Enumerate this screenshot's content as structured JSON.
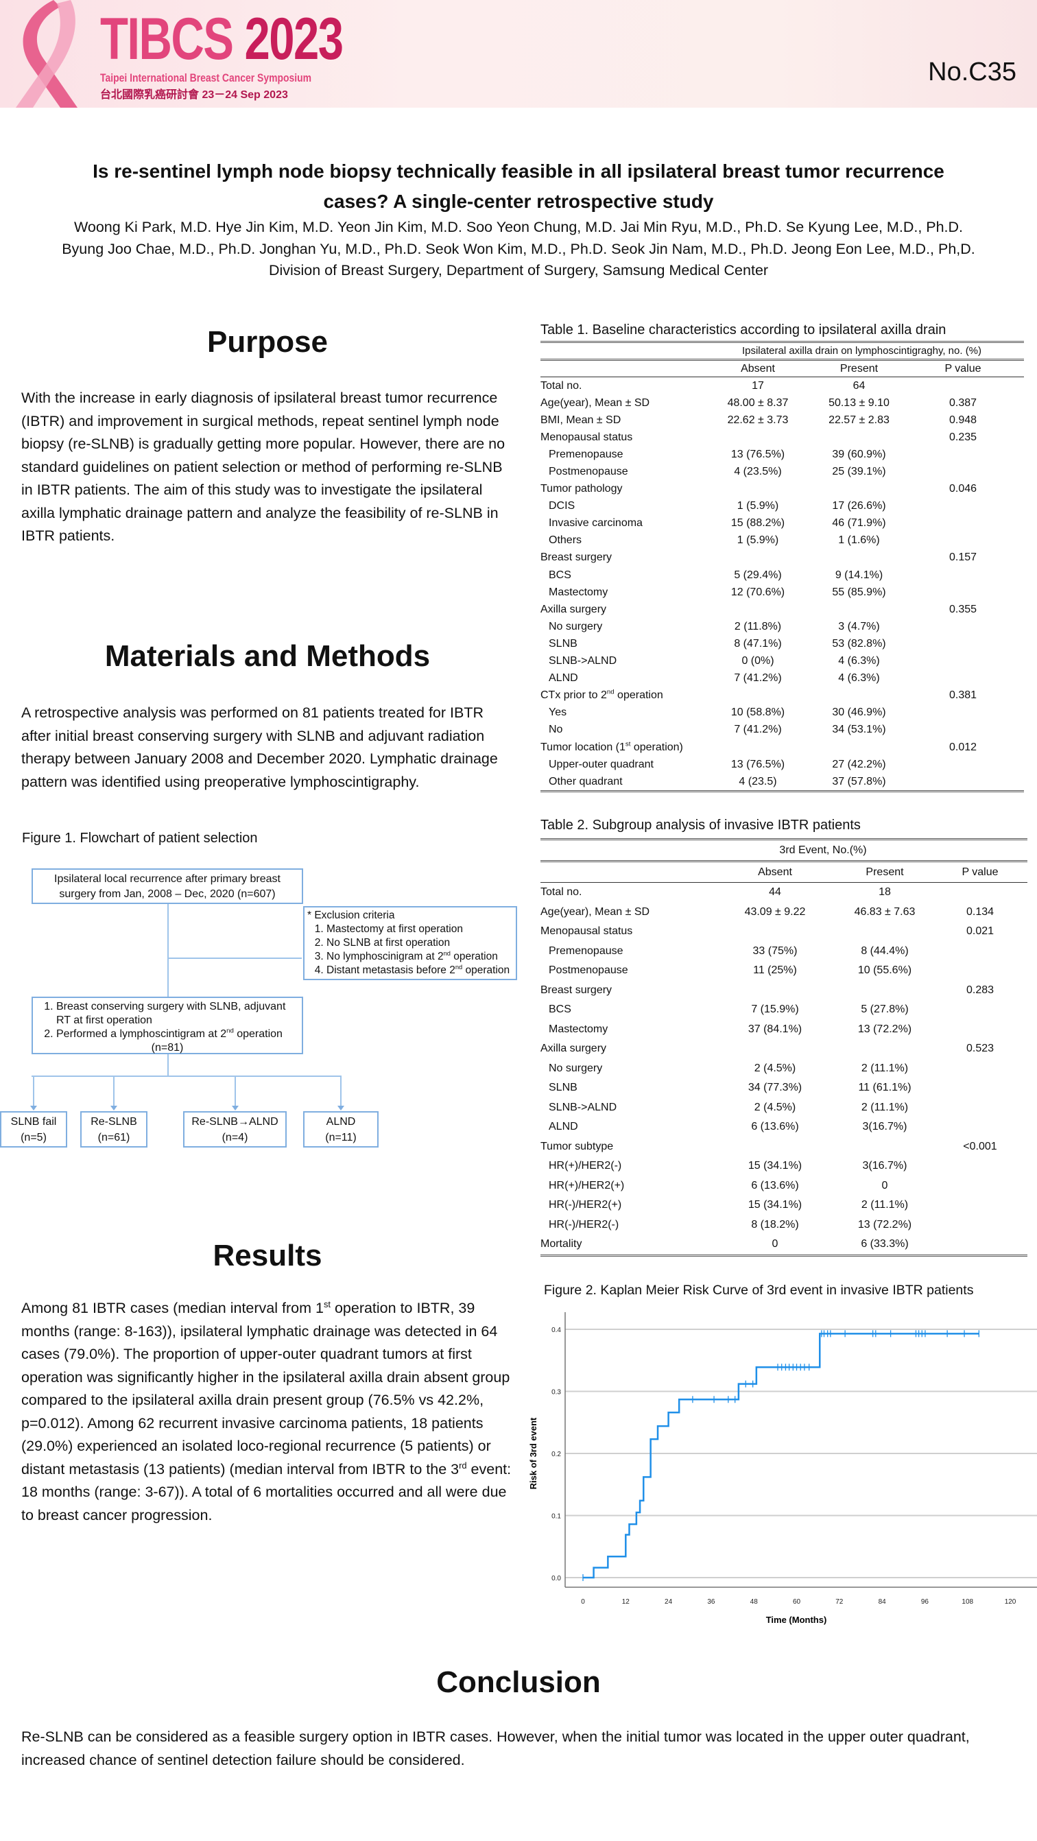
{
  "banner": {
    "logo_text": "TIBCS",
    "logo_year": "2023",
    "logo_subtitle": "Taipei International Breast Cancer Symposium",
    "logo_chinese": "台北國際乳癌研討會  23－24 Sep 2023",
    "poster_number": "No.C35",
    "accent_color": "#e2457c"
  },
  "title": {
    "line1": "Is re-sentinel lymph node biopsy technically feasible in all ipsilateral breast tumor recurrence",
    "line2": "cases? A single-center retrospective study",
    "authors_line1": "Woong Ki Park, M.D. Hye Jin Kim, M.D. Yeon Jin Kim, M.D. Soo Yeon Chung, M.D. Jai Min Ryu, M.D., Ph.D. Se Kyung Lee, M.D., Ph.D.",
    "authors_line2": "Byung Joo Chae, M.D., Ph.D. Jonghan Yu, M.D., Ph.D. Seok Won Kim, M.D., Ph.D. Seok Jin Nam, M.D., Ph.D. Jeong Eon Lee, M.D., Ph,D.",
    "affiliation": "Division of Breast Surgery, Department of Surgery, Samsung Medical Center"
  },
  "purpose": {
    "heading": "Purpose",
    "text": "With the increase in early diagnosis of ipsilateral breast tumor recurrence (IBTR) and improvement in surgical methods, repeat sentinel lymph node biopsy (re-SLNB) is gradually getting more popular. However, there are no standard guidelines on patient selection or method of performing re-SLNB in IBTR patients. The aim of this study was to investigate the ipsilateral axilla lymphatic drainage pattern and analyze the feasibility of re-SLNB in IBTR patients."
  },
  "methods": {
    "heading": "Materials and Methods",
    "text": "A retrospective analysis was performed on 81 patients treated for IBTR after initial breast conserving surgery with SLNB and adjuvant radiation therapy between January 2008 and December 2020. Lymphatic drainage pattern was identified using preoperative lymphoscintigraphy."
  },
  "figure1": {
    "caption": "Figure 1. Flowchart of patient selection",
    "box_start": "Ipsilateral local recurrence after primary breast surgery from Jan, 2008 – Dec, 2020 (n=607)",
    "exclusion_title": "* Exclusion criteria",
    "exclusion_items": [
      [
        "Mastectomy at first operation"
      ],
      [
        "No SLNB at first operation"
      ],
      [
        "No lymphoscinigram at 2",
        "nd",
        " operation"
      ],
      [
        "Distant metastasis before 2",
        "nd",
        " operation"
      ]
    ],
    "inclusion_items": [
      [
        "Breast conserving surgery with SLNB, adjuvant RT at first operation"
      ],
      [
        "Performed a lymphoscintigram at 2",
        "nd",
        " operation"
      ]
    ],
    "inclusion_n": "(n=81)",
    "outcomes": [
      {
        "label": "SLNB fail",
        "n": "(n=5)"
      },
      {
        "label": "Re-SLNB",
        "n": "(n=61)"
      },
      {
        "label": "Re-SLNB→ALND",
        "n": "(n=4)"
      },
      {
        "label": "ALND",
        "n": "(n=11)"
      }
    ]
  },
  "results": {
    "heading": "Results",
    "text": [
      "Among 81 IBTR cases (median interval from 1",
      "st",
      " operation to IBTR, 39 months (range: 8-163)), ipsilateral lymphatic drainage was detected in 64 cases (79.0%). The proportion of upper-outer quadrant tumors at first operation was significantly higher in the ipsilateral axilla drain absent group compared to the ipsilateral axilla drain present group (76.5% vs 42.2%, p=0.012). Among 62 recurrent invasive carcinoma patients, 18 patients (29.0%) experienced an isolated loco-regional recurrence (5 patients) or distant metastasis (13 patients) (median interval from IBTR to the 3",
      "rd",
      " event: 18 months (range: 3-67)). A total of 6 mortalities occurred and all were due to breast cancer progression."
    ]
  },
  "conclusion": {
    "heading": "Conclusion",
    "text": "Re-SLNB can be considered as a feasible surgery option in IBTR cases. However, when the initial tumor was located in the upper outer quadrant, increased chance of sentinel detection failure should be considered."
  },
  "table1": {
    "caption": "Table 1. Baseline characteristics according to ipsilateral axilla drain",
    "group_header": "Ipsilateral axilla drain on lymphoscintigraghy, no. (%)",
    "columns": [
      "",
      "Absent",
      "Present",
      "P value"
    ],
    "rows": [
      {
        "label": [
          "Total no."
        ],
        "a": "17",
        "b": "64",
        "p": ""
      },
      {
        "label": [
          "Age(year), Mean ± SD"
        ],
        "a": "48.00 ± 8.37",
        "b": "50.13 ± 9.10",
        "p": "0.387"
      },
      {
        "label": [
          "BMI, Mean ± SD"
        ],
        "a": "22.62 ± 3.73",
        "b": "22.57 ± 2.83",
        "p": "0.948"
      },
      {
        "label": [
          "Menopausal status"
        ],
        "a": "",
        "b": "",
        "p": "0.235"
      },
      {
        "label": [
          "Premenopause"
        ],
        "indent": true,
        "a": "13 (76.5%)",
        "b": "39 (60.9%)",
        "p": ""
      },
      {
        "label": [
          "Postmenopause"
        ],
        "indent": true,
        "a": "4 (23.5%)",
        "b": "25 (39.1%)",
        "p": ""
      },
      {
        "label": [
          "Tumor pathology"
        ],
        "a": "",
        "b": "",
        "p": "0.046"
      },
      {
        "label": [
          "DCIS"
        ],
        "indent": true,
        "a": "1 (5.9%)",
        "b": "17 (26.6%)",
        "p": ""
      },
      {
        "label": [
          "Invasive carcinoma"
        ],
        "indent": true,
        "a": "15 (88.2%)",
        "b": "46 (71.9%)",
        "p": ""
      },
      {
        "label": [
          "Others"
        ],
        "indent": true,
        "a": "1 (5.9%)",
        "b": "1 (1.6%)",
        "p": ""
      },
      {
        "label": [
          "Breast surgery"
        ],
        "a": "",
        "b": "",
        "p": "0.157"
      },
      {
        "label": [
          "BCS"
        ],
        "indent": true,
        "a": "5 (29.4%)",
        "b": "9 (14.1%)",
        "p": ""
      },
      {
        "label": [
          "Mastectomy"
        ],
        "indent": true,
        "a": "12 (70.6%)",
        "b": "55 (85.9%)",
        "p": ""
      },
      {
        "label": [
          "Axilla surgery"
        ],
        "a": "",
        "b": "",
        "p": "0.355"
      },
      {
        "label": [
          "No surgery"
        ],
        "indent": true,
        "a": "2 (11.8%)",
        "b": "3 (4.7%)",
        "p": ""
      },
      {
        "label": [
          "SLNB"
        ],
        "indent": true,
        "a": "8 (47.1%)",
        "b": "53 (82.8%)",
        "p": ""
      },
      {
        "label": [
          "SLNB->ALND"
        ],
        "indent": true,
        "a": "0 (0%)",
        "b": "4 (6.3%)",
        "p": ""
      },
      {
        "label": [
          "ALND"
        ],
        "indent": true,
        "a": "7 (41.2%)",
        "b": "4 (6.3%)",
        "p": ""
      },
      {
        "label": [
          "CTx prior to 2",
          "nd",
          " operation"
        ],
        "a": "",
        "b": "",
        "p": "0.381"
      },
      {
        "label": [
          "Yes"
        ],
        "indent": true,
        "a": "10 (58.8%)",
        "b": "30 (46.9%)",
        "p": ""
      },
      {
        "label": [
          "No"
        ],
        "indent": true,
        "a": "7 (41.2%)",
        "b": "34 (53.1%)",
        "p": ""
      },
      {
        "label": [
          "Tumor location (1",
          "st",
          " operation)"
        ],
        "a": "",
        "b": "",
        "p": "0.012"
      },
      {
        "label": [
          "Upper-outer quadrant"
        ],
        "indent": true,
        "a": "13 (76.5%)",
        "b": "27 (42.2%)",
        "p": ""
      },
      {
        "label": [
          "Other quadrant"
        ],
        "indent": true,
        "a": "4 (23.5)",
        "b": "37 (57.8%)",
        "p": ""
      }
    ]
  },
  "table2": {
    "caption": "Table 2. Subgroup analysis of invasive IBTR patients",
    "group_header": "3rd Event, No.(%)",
    "columns": [
      "",
      "Absent",
      "Present",
      "P value"
    ],
    "rows": [
      {
        "label": [
          "Total no."
        ],
        "a": "44",
        "b": "18",
        "p": ""
      },
      {
        "label": [
          "Age(year), Mean ± SD"
        ],
        "a": "43.09 ± 9.22",
        "b": "46.83 ± 7.63",
        "p": "0.134"
      },
      {
        "label": [
          "Menopausal status"
        ],
        "a": "",
        "b": "",
        "p": "0.021"
      },
      {
        "label": [
          "Premenopause"
        ],
        "indent": true,
        "a": "33 (75%)",
        "b": "8 (44.4%)",
        "p": ""
      },
      {
        "label": [
          "Postmenopause"
        ],
        "indent": true,
        "a": "11 (25%)",
        "b": "10 (55.6%)",
        "p": ""
      },
      {
        "label": [
          "Breast surgery"
        ],
        "a": "",
        "b": "",
        "p": "0.283"
      },
      {
        "label": [
          "BCS"
        ],
        "indent": true,
        "a": "7 (15.9%)",
        "b": "5 (27.8%)",
        "p": ""
      },
      {
        "label": [
          "Mastectomy"
        ],
        "indent": true,
        "a": "37 (84.1%)",
        "b": "13 (72.2%)",
        "p": ""
      },
      {
        "label": [
          "Axilla surgery"
        ],
        "a": "",
        "b": "",
        "p": "0.523"
      },
      {
        "label": [
          "No surgery"
        ],
        "indent": true,
        "a": "2 (4.5%)",
        "b": "2 (11.1%)",
        "p": ""
      },
      {
        "label": [
          "SLNB"
        ],
        "indent": true,
        "a": "34 (77.3%)",
        "b": "11 (61.1%)",
        "p": ""
      },
      {
        "label": [
          "SLNB->ALND"
        ],
        "indent": true,
        "a": "2 (4.5%)",
        "b": "2 (11.1%)",
        "p": ""
      },
      {
        "label": [
          "ALND"
        ],
        "indent": true,
        "a": "6 (13.6%)",
        "b": "3(16.7%)",
        "p": ""
      },
      {
        "label": [
          "Tumor subtype"
        ],
        "a": "",
        "b": "",
        "p": "<0.001"
      },
      {
        "label": [
          "HR(+)/HER2(-)"
        ],
        "indent": true,
        "a": "15 (34.1%)",
        "b": "3(16.7%)",
        "p": ""
      },
      {
        "label": [
          "HR(+)/HER2(+)"
        ],
        "indent": true,
        "a": "6 (13.6%)",
        "b": "0",
        "p": ""
      },
      {
        "label": [
          "HR(-)/HER2(+)"
        ],
        "indent": true,
        "a": "15 (34.1%)",
        "b": "2 (11.1%)",
        "p": ""
      },
      {
        "label": [
          "HR(-)/HER2(-)"
        ],
        "indent": true,
        "a": "8 (18.2%)",
        "b": "13 (72.2%)",
        "p": ""
      },
      {
        "label": [
          "Mortality"
        ],
        "a": "0",
        "b": "6 (33.3%)",
        "p": ""
      }
    ]
  },
  "chart_data": {
    "type": "line",
    "subtype": "step (Kaplan-Meier cumulative risk)",
    "title": "Figure 2. Kaplan Meier Risk Curve of 3rd event in invasive IBTR patients",
    "xlabel": "Time (Months)",
    "ylabel": "Risk of 3rd event",
    "xlim": [
      -6,
      126
    ],
    "ylim": [
      -0.02,
      0.42
    ],
    "xticks": [
      0,
      12,
      24,
      36,
      48,
      60,
      72,
      84,
      96,
      108,
      120
    ],
    "yticks": [
      "0.0",
      "0.1",
      "0.2",
      "0.3",
      "0.4"
    ],
    "grid": "horizontal",
    "line_color": "#1f8fe8",
    "steps": [
      [
        0,
        0.0
      ],
      [
        3,
        0.016
      ],
      [
        7,
        0.034
      ],
      [
        12,
        0.069
      ],
      [
        13,
        0.086
      ],
      [
        15,
        0.105
      ],
      [
        16,
        0.124
      ],
      [
        17,
        0.162
      ],
      [
        19,
        0.223
      ],
      [
        21,
        0.244
      ],
      [
        24,
        0.266
      ],
      [
        27,
        0.287
      ],
      [
        43.7,
        0.312
      ],
      [
        48.7,
        0.339
      ],
      [
        66.5,
        0.393
      ]
    ],
    "end_time": 111.2,
    "censored": [
      0,
      30.8,
      36.8,
      40.8,
      42.7,
      45.7,
      47.7,
      54.7,
      55.8,
      56.9,
      57.9,
      59,
      60,
      61.1,
      62.2,
      63.5,
      67,
      67.7,
      68.7,
      69.5,
      73.6,
      81.4,
      82.2,
      86.4,
      93.5,
      94.3,
      95.2,
      96.1,
      102.3,
      107.1,
      111.2
    ]
  }
}
